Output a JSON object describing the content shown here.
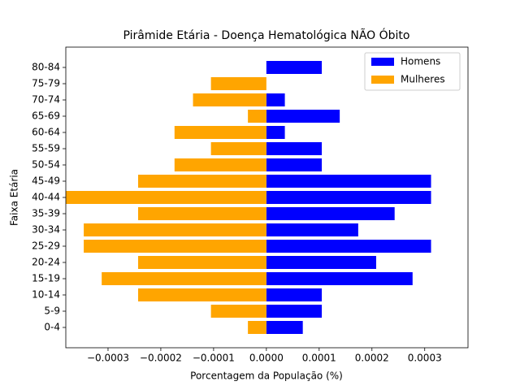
{
  "chart_data": {
    "type": "barh-pyramid",
    "title": "Pirâmide Etária - Doença Hematológica NÃO Óbito",
    "x_label": "Porcentagem da População (%)",
    "y_label": "Faixa Etária",
    "categories": [
      "0-4",
      "5-9",
      "10-14",
      "15-19",
      "20-24",
      "25-29",
      "30-34",
      "35-39",
      "40-44",
      "45-49",
      "50-54",
      "55-59",
      "60-64",
      "65-69",
      "70-74",
      "75-79",
      "80-84"
    ],
    "series": [
      {
        "name": "Homens",
        "color": "#0000ff",
        "values": [
          6.9e-05,
          0.000105,
          0.000105,
          0.000277,
          0.000208,
          0.000312,
          0.000174,
          0.000243,
          0.000312,
          0.000312,
          0.000105,
          0.000105,
          3.5e-05,
          0.000139,
          3.5e-05,
          0,
          0.000105
        ]
      },
      {
        "name": "Mulheres",
        "color": "#ffa500",
        "values": [
          -3.5e-05,
          -0.000105,
          -0.000243,
          -0.000312,
          -0.000243,
          -0.000346,
          -0.000346,
          -0.000243,
          -0.00038,
          -0.000243,
          -0.000174,
          -0.000105,
          -0.000174,
          -3.5e-05,
          -0.000139,
          -0.000105,
          0
        ]
      }
    ],
    "xlim": [
      -0.00038,
      0.000382
    ],
    "xticks": [
      {
        "value": -0.0003,
        "label": "−0.0003"
      },
      {
        "value": -0.0002,
        "label": "−0.0002"
      },
      {
        "value": -0.0001,
        "label": "−0.0001"
      },
      {
        "value": 0,
        "label": "0.0000"
      },
      0.0001,
      0.0002,
      0.0003
    ],
    "legend": "upper right"
  }
}
